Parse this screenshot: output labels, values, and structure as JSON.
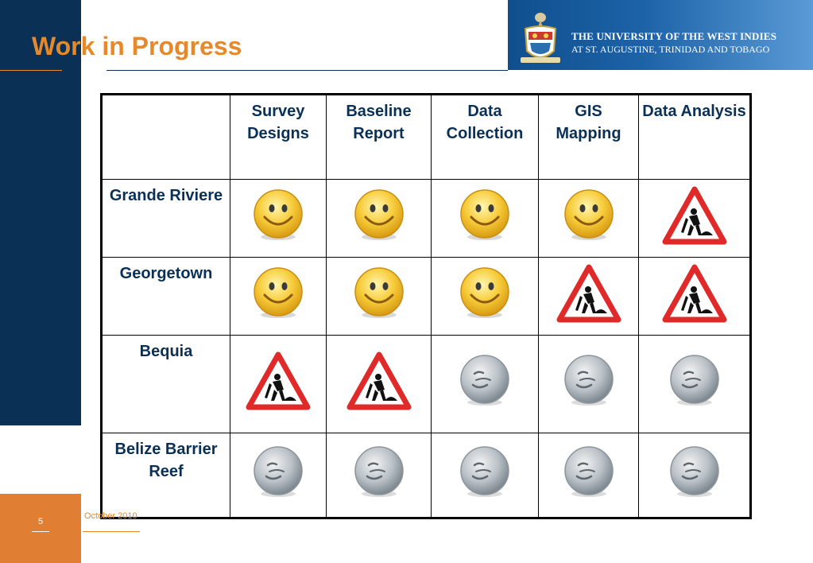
{
  "slide": {
    "title": "Work in Progress",
    "page_number": "5",
    "date": "October 2010"
  },
  "banner": {
    "line1": "THE UNIVERSITY OF THE WEST INDIES",
    "line2": "AT ST. AUGUSTINE, TRINIDAD AND TOBAGO"
  },
  "table": {
    "columns": [
      "Survey Designs",
      "Baseline Report",
      "Data Collection",
      "GIS Mapping",
      "Data Analysis"
    ],
    "rows": [
      {
        "site": "Grande Riviere",
        "status": [
          "complete",
          "complete",
          "complete",
          "complete",
          "in-progress"
        ]
      },
      {
        "site": "Georgetown",
        "status": [
          "complete",
          "complete",
          "complete",
          "in-progress",
          "in-progress"
        ]
      },
      {
        "site": "Bequia",
        "status": [
          "in-progress",
          "in-progress",
          "not-started",
          "not-started",
          "not-started"
        ]
      },
      {
        "site": "Belize Barrier Reef",
        "status": [
          "not-started",
          "not-started",
          "not-started",
          "not-started",
          "not-started"
        ]
      }
    ]
  },
  "legend_icons": {
    "complete": "smiley-face-icon",
    "in-progress": "men-at-work-sign-icon",
    "not-started": "grey-face-icon"
  },
  "colors": {
    "navy": "#0b3055",
    "orange": "#e6892b",
    "banner_blue": "#1d63a8",
    "sign_red": "#e02a2a"
  }
}
